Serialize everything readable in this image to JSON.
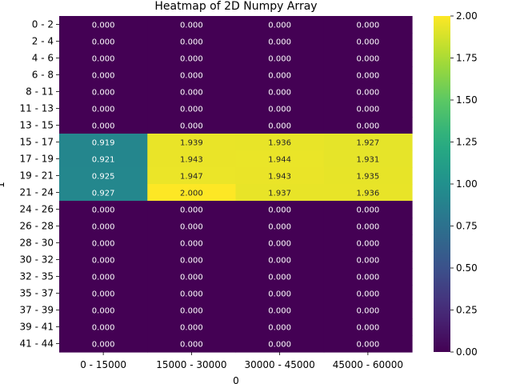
{
  "chart_data": {
    "type": "heatmap",
    "title": "Heatmap of 2D Numpy Array",
    "xlabel": "0",
    "ylabel": "1",
    "x_categories": [
      "0 - 15000",
      "15000 - 30000",
      "30000 - 45000",
      "45000 - 60000"
    ],
    "y_categories": [
      "0 - 2",
      "2 - 4",
      "4 - 6",
      "6 - 8",
      "8 - 11",
      "11 - 13",
      "13 - 15",
      "15 - 17",
      "17 - 19",
      "19 - 21",
      "21 - 24",
      "24 - 26",
      "26 - 28",
      "28 - 30",
      "30 - 32",
      "32 - 35",
      "35 - 37",
      "37 - 39",
      "39 - 41",
      "41 - 44"
    ],
    "values": [
      [
        0,
        0,
        0,
        0
      ],
      [
        0,
        0,
        0,
        0
      ],
      [
        0,
        0,
        0,
        0
      ],
      [
        0,
        0,
        0,
        0
      ],
      [
        0,
        0,
        0,
        0
      ],
      [
        0,
        0,
        0,
        0
      ],
      [
        0,
        0,
        0,
        0
      ],
      [
        0.919,
        1.939,
        1.936,
        1.927
      ],
      [
        0.921,
        1.943,
        1.944,
        1.931
      ],
      [
        0.925,
        1.947,
        1.943,
        1.935
      ],
      [
        0.927,
        2.0,
        1.937,
        1.936
      ],
      [
        0,
        0,
        0,
        0
      ],
      [
        0,
        0,
        0,
        0
      ],
      [
        0,
        0,
        0,
        0
      ],
      [
        0,
        0,
        0,
        0
      ],
      [
        0,
        0,
        0,
        0
      ],
      [
        0,
        0,
        0,
        0
      ],
      [
        0,
        0,
        0,
        0
      ],
      [
        0,
        0,
        0,
        0
      ],
      [
        0,
        0,
        0,
        0
      ]
    ],
    "value_format_decimals": 3,
    "colormap": "viridis",
    "vmin": 0,
    "vmax": 2,
    "colorbar_ticks": [
      "0.00",
      "0.25",
      "0.50",
      "0.75",
      "1.00",
      "1.25",
      "1.50",
      "1.75",
      "2.00"
    ],
    "grid": false,
    "legend": "colorbar-right"
  }
}
